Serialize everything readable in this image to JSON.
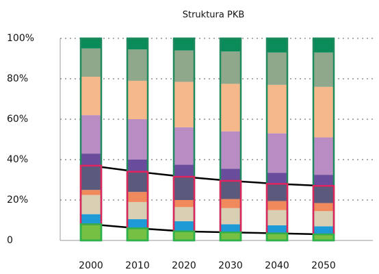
{
  "chart_data": {
    "type": "stacked_bar",
    "title": "Struktura PKB",
    "categories": [
      "2000",
      "2010",
      "2020",
      "2030",
      "2040",
      "2050"
    ],
    "series": [
      {
        "color": "#76c043",
        "values": [
          8,
          6,
          4.5,
          4,
          3.5,
          3
        ]
      },
      {
        "color": "#1e9bd7",
        "values": [
          5,
          4.5,
          5,
          4,
          4,
          4
        ]
      },
      {
        "color": "#d9cfb3",
        "values": [
          9.5,
          8.5,
          7,
          8,
          7.5,
          7.5
        ]
      },
      {
        "color": "#f08a5d",
        "values": [
          2.5,
          5,
          3.5,
          4.5,
          4.5,
          4
        ]
      },
      {
        "color": "#5c5a7c",
        "values": [
          12,
          10,
          11.5,
          9,
          8.5,
          8.5
        ]
      },
      {
        "color": "#6a4c9c",
        "values": [
          6,
          6,
          6,
          6,
          5.5,
          5.5
        ]
      },
      {
        "color": "#b98cc4",
        "values": [
          19,
          20,
          18.5,
          18.5,
          19.5,
          18.5
        ]
      },
      {
        "color": "#f5b88a",
        "values": [
          19,
          19,
          22.5,
          23.5,
          24,
          25
        ]
      },
      {
        "color": "#8fa88c",
        "values": [
          14,
          15.5,
          15.5,
          16,
          16,
          17
        ]
      },
      {
        "color": "#0b8a5a",
        "values": [
          5,
          5.5,
          6,
          6.5,
          7,
          7
        ]
      }
    ],
    "ylim": [
      0,
      100
    ],
    "yticks": [
      0,
      {
        "value": 20,
        "label": "20%"
      },
      {
        "value": 40,
        "label": "40%"
      },
      {
        "value": 60,
        "label": "60%"
      },
      {
        "value": 80,
        "label": "80%"
      },
      {
        "value": 100,
        "label": "100%"
      }
    ],
    "grid": true
  }
}
